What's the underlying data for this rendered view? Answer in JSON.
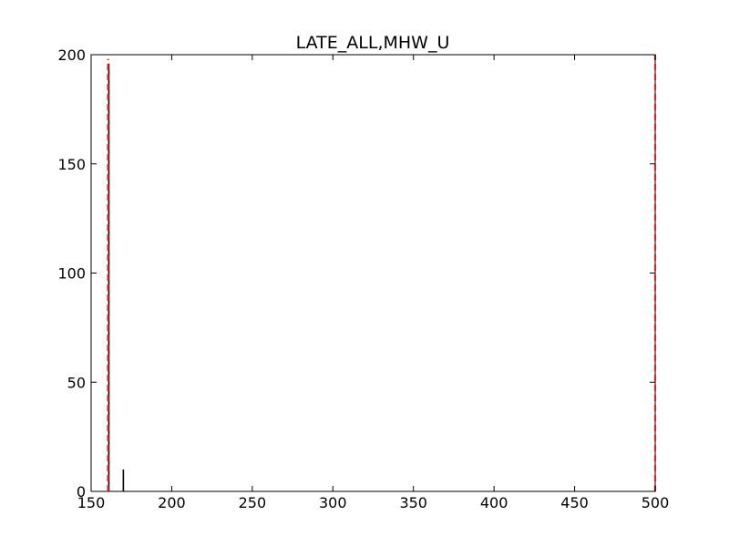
{
  "chart_data": {
    "type": "bar",
    "title": "LATE_ALL,MHW_U",
    "xlabel": "",
    "ylabel": "",
    "xlim": [
      150,
      500
    ],
    "ylim": [
      0,
      200
    ],
    "x_ticks": [
      150,
      200,
      250,
      300,
      350,
      400,
      450,
      500
    ],
    "y_ticks": [
      0,
      50,
      100,
      150,
      200
    ],
    "x_tick_labels": [
      "150",
      "200",
      "250",
      "300",
      "350",
      "400",
      "450",
      "500"
    ],
    "y_tick_labels": [
      "0",
      "50",
      "100",
      "150",
      "200"
    ],
    "grid": false,
    "series": [
      {
        "style": "histogram-bars",
        "color": "#000000",
        "x": [
          161,
          170
        ],
        "values": [
          196,
          10
        ]
      }
    ],
    "reference_lines": [
      {
        "style": "dashed-vertical",
        "color": "#d62728",
        "x": 160.5,
        "ymax": 198
      },
      {
        "style": "dashed-vertical",
        "color": "#d62728",
        "x": 500,
        "ymax": 200
      }
    ]
  }
}
